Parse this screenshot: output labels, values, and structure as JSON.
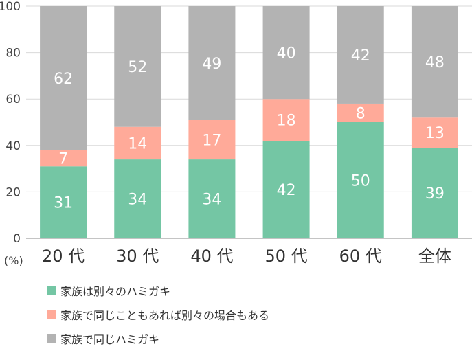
{
  "chart_data": {
    "type": "bar",
    "stacked": true,
    "categories": [
      "20 代",
      "30 代",
      "40 代",
      "50 代",
      "60 代",
      "全体"
    ],
    "series": [
      {
        "name": "家族は別々のハミガキ",
        "color": "#74c6a4",
        "values": [
          31,
          34,
          34,
          42,
          50,
          39
        ]
      },
      {
        "name": "家族で同じこともあれば別々の場合もある",
        "color": "#ffaa99",
        "values": [
          7,
          14,
          17,
          18,
          8,
          13
        ]
      },
      {
        "name": "家族で同じハミガキ",
        "color": "#b3b3b3",
        "values": [
          62,
          52,
          49,
          40,
          42,
          48
        ]
      }
    ],
    "ylim": [
      0,
      100
    ],
    "yticks": [
      0,
      20,
      40,
      60,
      80,
      100
    ],
    "ylabel": "(%)",
    "grid": true,
    "legend_position": "bottom-left"
  }
}
